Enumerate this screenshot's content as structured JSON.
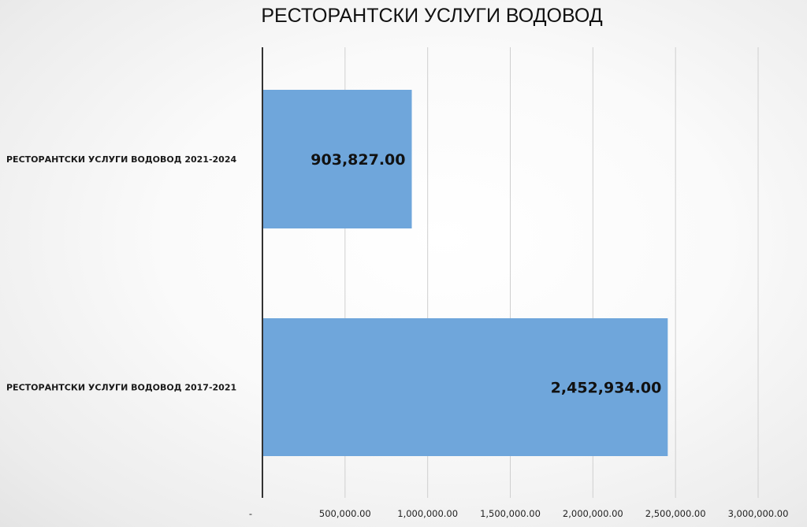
{
  "chart_data": {
    "type": "bar",
    "orientation": "horizontal",
    "title": "РЕСТОРАНТСКИ УСЛУГИ ВОДОВОД",
    "xlabel": "",
    "ylabel": "",
    "xlim": [
      0,
      3000000
    ],
    "grid": true,
    "categories": [
      "РЕСТОРАНТСКИ УСЛУГИ ВОДОВОД 2021-2024",
      "РЕСТОРАНТСКИ УСЛУГИ ВОДОВОД 2017-2021"
    ],
    "values": [
      903827,
      2452934
    ],
    "data_labels": [
      "903,827.00",
      "2,452,934.00"
    ],
    "ticks": [
      0,
      500000,
      1000000,
      1500000,
      2000000,
      2500000,
      3000000
    ],
    "tick_labels": [
      "-",
      "500,000.00",
      "1,000,000.00",
      "1,500,000.00",
      "2,000,000.00",
      "2,500,000.00",
      "3,000,000.00"
    ],
    "bar_color": "#6fa6db"
  }
}
